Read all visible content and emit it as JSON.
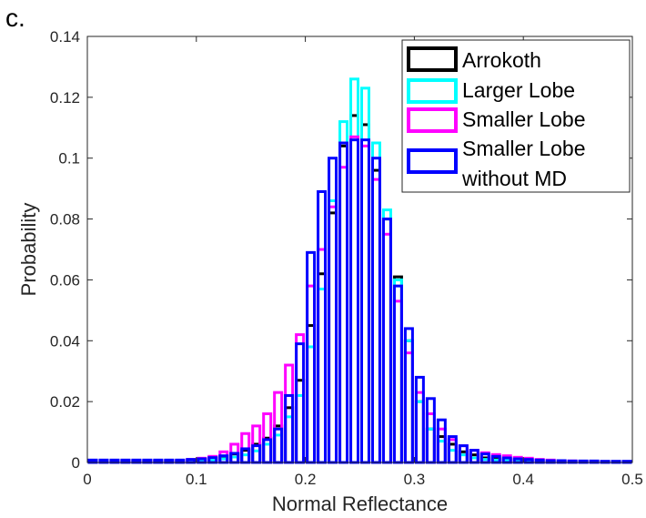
{
  "panel_label": "c.",
  "chart_data": {
    "type": "bar",
    "title": "",
    "xlabel": "Normal Reflectance",
    "ylabel": "Probability",
    "xlim": [
      0,
      0.5
    ],
    "ylim": [
      0,
      0.14
    ],
    "xticks": [
      "0",
      "0.1",
      "0.2",
      "0.3",
      "0.4",
      "0.5"
    ],
    "yticks": [
      "0",
      "0.02",
      "0.04",
      "0.06",
      "0.08",
      "0.1",
      "0.12",
      "0.14"
    ],
    "grid": false,
    "legend_position": "top-right",
    "bin_width": 0.01,
    "bin_centers": [
      0.005,
      0.015,
      0.025,
      0.035,
      0.045,
      0.055,
      0.065,
      0.075,
      0.085,
      0.095,
      0.105,
      0.115,
      0.125,
      0.135,
      0.145,
      0.155,
      0.165,
      0.175,
      0.185,
      0.195,
      0.205,
      0.215,
      0.225,
      0.235,
      0.245,
      0.255,
      0.265,
      0.275,
      0.285,
      0.295,
      0.305,
      0.315,
      0.325,
      0.335,
      0.345,
      0.355,
      0.365,
      0.375,
      0.385,
      0.395,
      0.405,
      0.415,
      0.425,
      0.435,
      0.445,
      0.455,
      0.465,
      0.475,
      0.485,
      0.495
    ],
    "series": [
      {
        "name": "Arrokoth",
        "color": "#000000",
        "values": [
          0.0005,
          0.0005,
          0.0005,
          0.0005,
          0.0005,
          0.0005,
          0.0005,
          0.0005,
          0.0005,
          0.0008,
          0.001,
          0.0015,
          0.002,
          0.0028,
          0.004,
          0.006,
          0.008,
          0.012,
          0.018,
          0.027,
          0.045,
          0.062,
          0.082,
          0.104,
          0.114,
          0.111,
          0.096,
          0.08,
          0.061,
          0.04,
          0.02,
          0.011,
          0.0085,
          0.006,
          0.0035,
          0.0025,
          0.0015,
          0.0012,
          0.001,
          0.0008,
          0.0006,
          0.0005,
          0.0004,
          0.0003,
          0.0003,
          0.0003,
          0.0003,
          0.0002,
          0.0002,
          0.0002
        ]
      },
      {
        "name": "Larger Lobe",
        "color": "#00ffff",
        "values": [
          0.0003,
          0.0003,
          0.0003,
          0.0003,
          0.0003,
          0.0003,
          0.0003,
          0.0003,
          0.0003,
          0.0004,
          0.0006,
          0.0008,
          0.0012,
          0.0018,
          0.0025,
          0.0038,
          0.006,
          0.009,
          0.015,
          0.022,
          0.038,
          0.057,
          0.086,
          0.112,
          0.126,
          0.123,
          0.105,
          0.083,
          0.06,
          0.04,
          0.02,
          0.011,
          0.007,
          0.004,
          0.0025,
          0.0015,
          0.001,
          0.0008,
          0.0006,
          0.0005,
          0.0004,
          0.0003,
          0.0003,
          0.0003,
          0.0002,
          0.0002,
          0.0002,
          0.0002,
          0.0002,
          0.0002
        ]
      },
      {
        "name": "Smaller Lobe",
        "color": "#ff00ff",
        "values": [
          0.0006,
          0.0006,
          0.0006,
          0.0006,
          0.0006,
          0.0006,
          0.0006,
          0.0006,
          0.0007,
          0.001,
          0.0014,
          0.002,
          0.0035,
          0.006,
          0.0095,
          0.012,
          0.016,
          0.023,
          0.032,
          0.042,
          0.058,
          0.07,
          0.084,
          0.097,
          0.107,
          0.104,
          0.093,
          0.075,
          0.053,
          0.036,
          0.023,
          0.016,
          0.011,
          0.0075,
          0.0055,
          0.004,
          0.0032,
          0.0026,
          0.0022,
          0.0017,
          0.0014,
          0.001,
          0.0008,
          0.0006,
          0.0005,
          0.0004,
          0.0004,
          0.0003,
          0.0003,
          0.0003
        ]
      },
      {
        "name": "Smaller Lobe\nwithout MD",
        "color": "#0000ff",
        "values": [
          0.0008,
          0.0008,
          0.0008,
          0.0008,
          0.0008,
          0.0008,
          0.0008,
          0.0008,
          0.0008,
          0.001,
          0.0012,
          0.0016,
          0.0022,
          0.003,
          0.0045,
          0.0055,
          0.0075,
          0.011,
          0.022,
          0.039,
          0.069,
          0.089,
          0.1,
          0.105,
          0.106,
          0.106,
          0.1,
          0.08,
          0.058,
          0.044,
          0.028,
          0.021,
          0.014,
          0.0085,
          0.0055,
          0.004,
          0.0028,
          0.002,
          0.0015,
          0.0012,
          0.001,
          0.0008,
          0.0006,
          0.0006,
          0.0005,
          0.0005,
          0.0005,
          0.0004,
          0.0004,
          0.0004
        ]
      }
    ]
  }
}
